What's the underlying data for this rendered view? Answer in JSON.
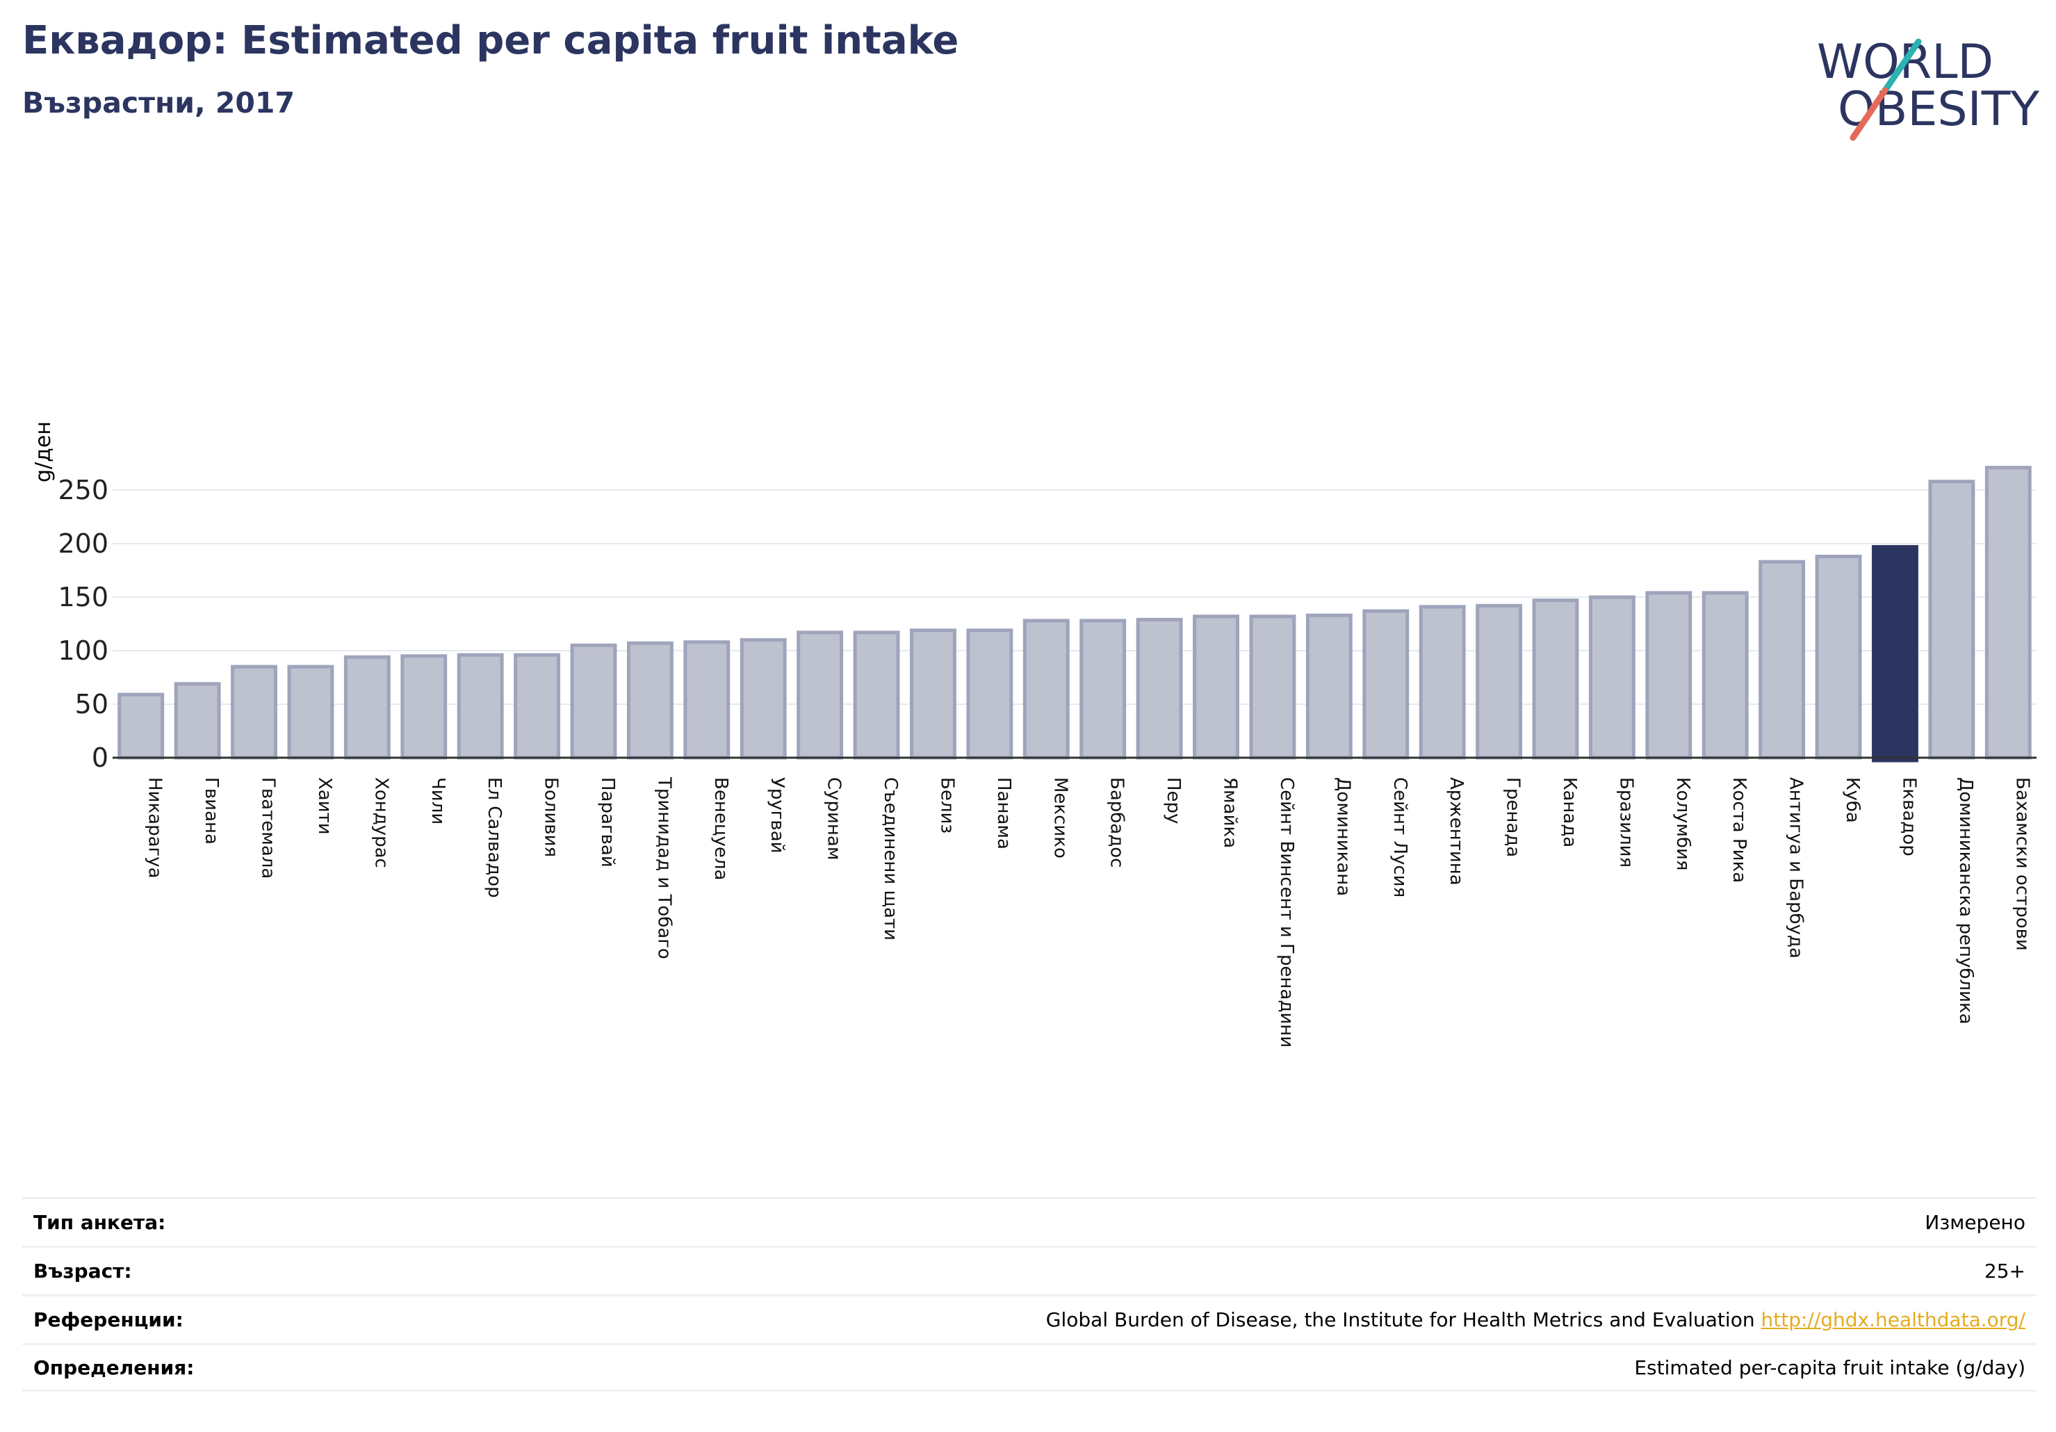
{
  "header": {
    "title": "Еквадор: Estimated per capita fruit intake",
    "subtitle": "Възрастни, 2017"
  },
  "logo": {
    "line1": "WORLD",
    "line2": "OBESITY",
    "icon": "world-obesity-logo"
  },
  "colors": {
    "bar": "#bec1ce",
    "bar_border": "#9fa4bc",
    "highlight": "#2b3560",
    "title": "#2b3560",
    "link": "#e5ac1f",
    "grid": "#e6e9ee"
  },
  "chart_data": {
    "type": "bar",
    "title": "Еквадор: Estimated per capita fruit intake",
    "subtitle": "Възрастни, 2017",
    "xlabel": "",
    "ylabel": "g/ден",
    "ylim": [
      0,
      280
    ],
    "yticks": [
      0,
      50,
      100,
      150,
      200,
      250
    ],
    "grid": true,
    "highlight": "Еквадор",
    "categories": [
      "Никарагуа",
      "Гвиана",
      "Гватемала",
      "Хаити",
      "Хондурас",
      "Чили",
      "Ел Салвадор",
      "Боливия",
      "Парагвай",
      "Тринидад и Тобаго",
      "Венецуела",
      "Уругвай",
      "Суринам",
      "Съединени щати",
      "Белиз",
      "Панама",
      "Мексико",
      "Барбадос",
      "Перу",
      "Ямайка",
      "Сейнт Винсент и Гренадини",
      "Доминикана",
      "Сейнт Лусия",
      "Аржентина",
      "Гренада",
      "Канада",
      "Бразилия",
      "Колумбия",
      "Коста Рика",
      "Антигуа и Барбуда",
      "Куба",
      "Еквадор",
      "Доминиканска република",
      "Бахамски острови"
    ],
    "values": [
      59,
      69,
      85,
      85,
      94,
      95,
      96,
      96,
      105,
      107,
      108,
      110,
      117,
      117,
      119,
      119,
      128,
      128,
      129,
      132,
      132,
      133,
      137,
      141,
      142,
      147,
      150,
      154,
      154,
      183,
      188,
      197,
      258,
      271
    ]
  },
  "info": [
    {
      "label": "Тип анкета:",
      "value": "Измерено"
    },
    {
      "label": "Възраст:",
      "value": "25+"
    },
    {
      "label": "Референции:",
      "value": "Global Burden of Disease, the Institute for Health Metrics and Evaluation",
      "link": "http://ghdx.healthdata.org/"
    },
    {
      "label": "Определения:",
      "value": "Estimated per-capita fruit intake (g/day)"
    }
  ]
}
